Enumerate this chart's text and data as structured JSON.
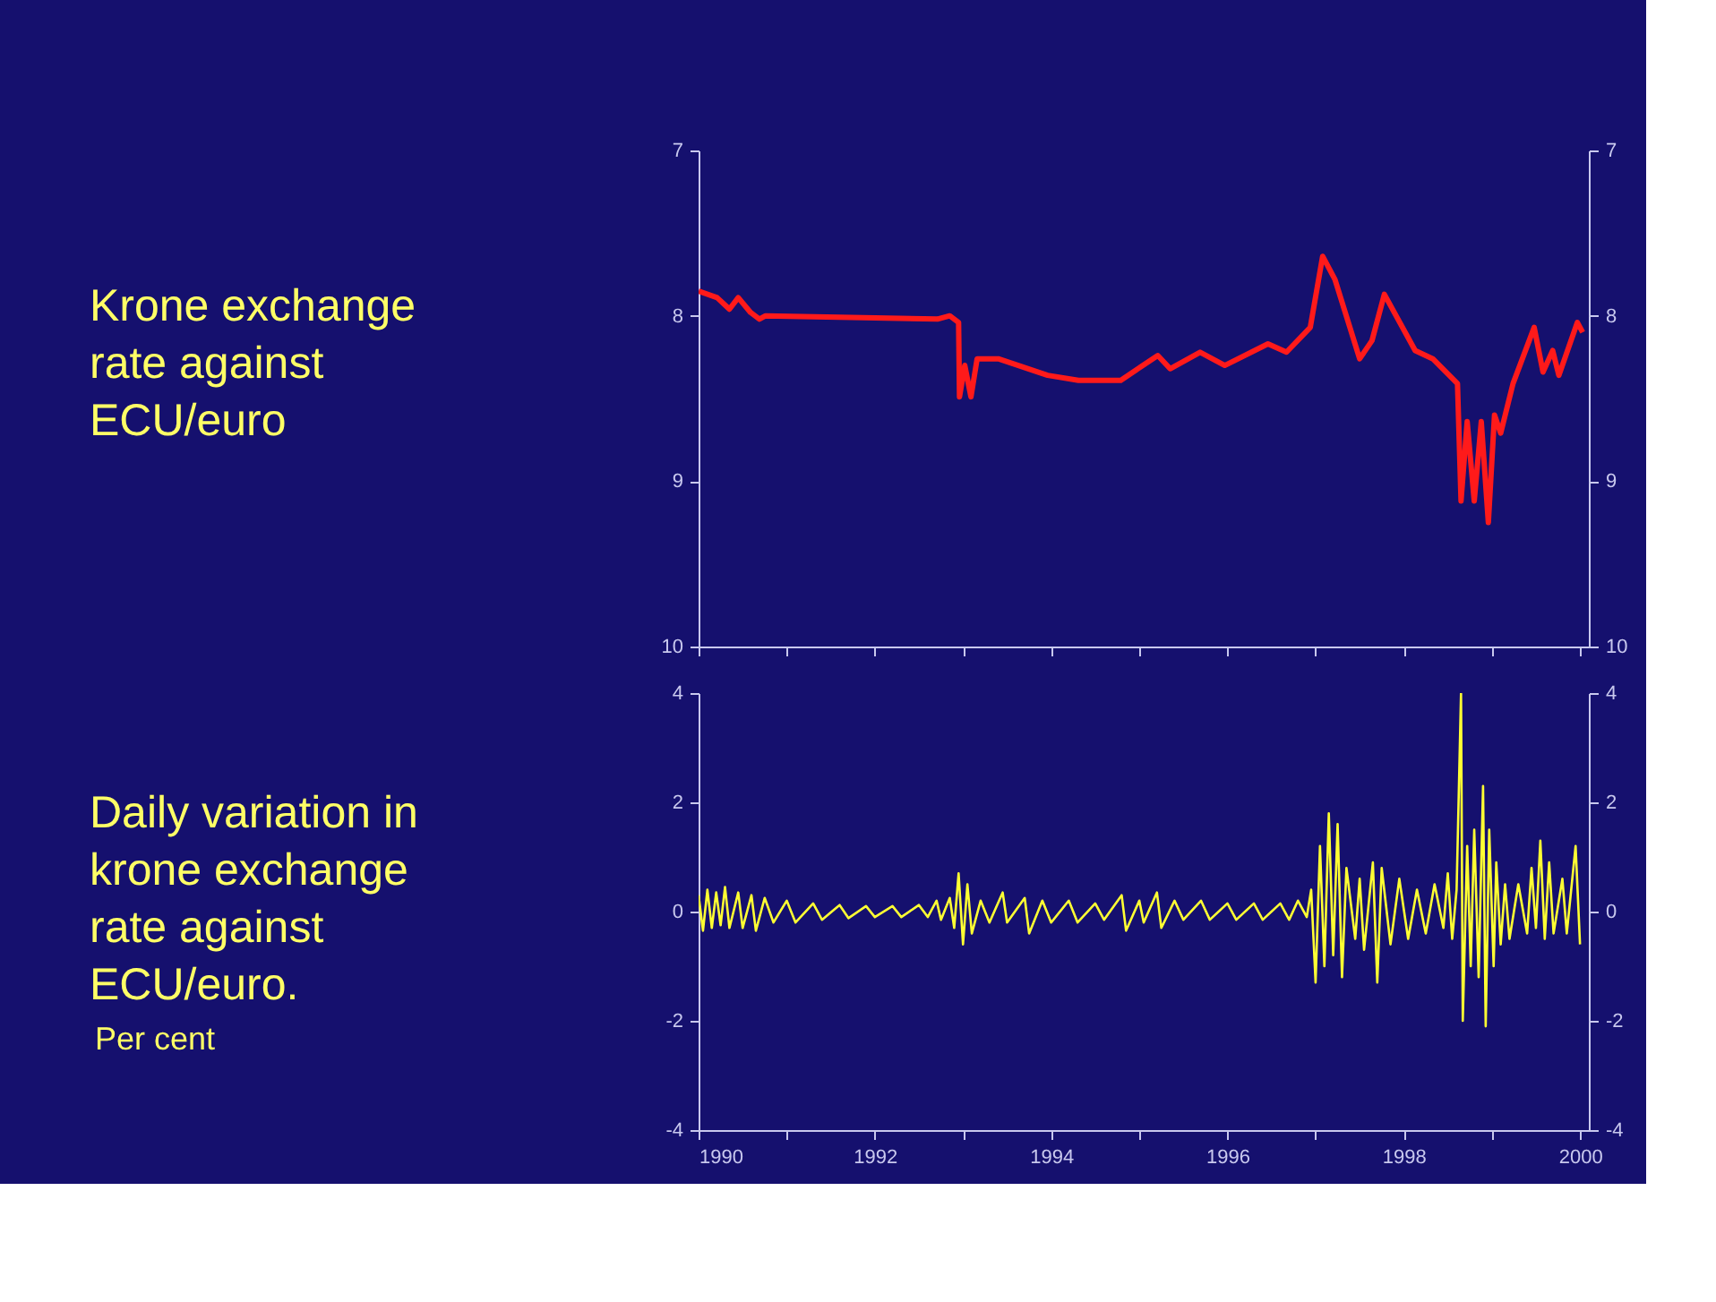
{
  "chart_data": [
    {
      "type": "line",
      "title": "Krone exchange rate against ECU/euro",
      "tick_labels": "y",
      "xlim": [
        1990,
        2000.1
      ],
      "xticks": [
        1990,
        {
          "value": 1991,
          "label": null
        },
        1992,
        {
          "value": 1993,
          "label": null
        },
        1994,
        {
          "value": 1995,
          "label": null
        },
        1996,
        {
          "value": 1997,
          "label": null
        },
        1998,
        {
          "value": 1999,
          "label": null
        },
        2000
      ],
      "ylim": [
        10,
        7
      ],
      "yticks": [
        7,
        8,
        9,
        10
      ],
      "y2lim": [
        10,
        7
      ],
      "y2ticks": [
        7,
        8,
        9,
        10
      ],
      "x": [
        1990.0,
        1990.21,
        1990.35,
        1990.45,
        1990.59,
        1990.69,
        1990.76,
        1992.71,
        1992.85,
        1992.95,
        1992.96,
        1993.02,
        1993.09,
        1993.16,
        1993.4,
        1993.96,
        1994.31,
        1994.79,
        1995.21,
        1995.35,
        1995.69,
        1995.97,
        1996.46,
        1996.67,
        1996.94,
        1997.08,
        1997.22,
        1997.5,
        1997.64,
        1997.78,
        1998.13,
        1998.33,
        1998.61,
        1998.65,
        1998.72,
        1998.8,
        1998.88,
        1998.96,
        1999.03,
        1999.1,
        1999.24,
        1999.48,
        1999.58,
        1999.69,
        1999.76,
        1999.97,
        2000.03
      ],
      "series": [
        {
          "color": "#ff1a1a",
          "values": [
            7.85,
            7.89,
            7.96,
            7.89,
            7.98,
            8.02,
            8.0,
            8.02,
            8.0,
            8.04,
            8.49,
            8.3,
            8.49,
            8.26,
            8.26,
            8.36,
            8.39,
            8.39,
            8.24,
            8.32,
            8.22,
            8.3,
            8.17,
            8.22,
            8.07,
            7.64,
            7.78,
            8.26,
            8.15,
            7.87,
            8.21,
            8.26,
            8.41,
            9.12,
            8.64,
            9.12,
            8.64,
            9.25,
            8.6,
            8.71,
            8.41,
            8.07,
            8.34,
            8.21,
            8.36,
            8.04,
            8.1
          ]
        }
      ]
    },
    {
      "type": "line",
      "title": "Daily variation in krone exchange rate against ECU/euro.",
      "ylabel": "Per cent",
      "xlim": [
        1990,
        2000.1
      ],
      "xticks": [
        1990,
        {
          "value": 1991,
          "label": null
        },
        1992,
        {
          "value": 1993,
          "label": null
        },
        1994,
        {
          "value": 1995,
          "label": null
        },
        1996,
        {
          "value": 1997,
          "label": null
        },
        1998,
        {
          "value": 1999,
          "label": null
        },
        2000
      ],
      "ylim": [
        -4,
        4
      ],
      "yticks": [
        -4,
        -2,
        0,
        2,
        4
      ],
      "y2lim": [
        -4,
        4
      ],
      "y2ticks": [
        -4,
        -2,
        0,
        2,
        4
      ],
      "x": [
        1990.0,
        1990.05,
        1990.1,
        1990.15,
        1990.2,
        1990.25,
        1990.3,
        1990.35,
        1990.45,
        1990.5,
        1990.6,
        1990.65,
        1990.75,
        1990.85,
        1991.0,
        1991.1,
        1991.3,
        1991.4,
        1991.6,
        1991.7,
        1991.9,
        1992.0,
        1992.2,
        1992.3,
        1992.5,
        1992.6,
        1992.7,
        1992.75,
        1992.85,
        1992.9,
        1992.95,
        1993.0,
        1993.05,
        1993.1,
        1993.2,
        1993.3,
        1993.45,
        1993.5,
        1993.7,
        1993.75,
        1993.9,
        1994.0,
        1994.2,
        1994.3,
        1994.5,
        1994.6,
        1994.8,
        1994.85,
        1995.0,
        1995.05,
        1995.2,
        1995.25,
        1995.4,
        1995.5,
        1995.7,
        1995.8,
        1996.0,
        1996.1,
        1996.3,
        1996.4,
        1996.6,
        1996.7,
        1996.8,
        1996.9,
        1996.95,
        1997.0,
        1997.05,
        1997.1,
        1997.15,
        1997.2,
        1997.25,
        1997.3,
        1997.35,
        1997.45,
        1997.5,
        1997.55,
        1997.65,
        1997.7,
        1997.75,
        1997.85,
        1997.95,
        1998.05,
        1998.15,
        1998.25,
        1998.35,
        1998.45,
        1998.5,
        1998.55,
        1998.6,
        1998.65,
        1998.67,
        1998.72,
        1998.76,
        1998.8,
        1998.85,
        1998.9,
        1998.93,
        1998.97,
        1999.02,
        1999.05,
        1999.1,
        1999.15,
        1999.2,
        1999.3,
        1999.4,
        1999.45,
        1999.5,
        1999.55,
        1999.6,
        1999.65,
        1999.7,
        1999.8,
        1999.85,
        1999.95,
        2000.0
      ],
      "series": [
        {
          "color": "#ffff33",
          "values": [
            0.3,
            -0.35,
            0.4,
            -0.3,
            0.35,
            -0.25,
            0.45,
            -0.3,
            0.35,
            -0.3,
            0.3,
            -0.35,
            0.25,
            -0.2,
            0.2,
            -0.2,
            0.15,
            -0.15,
            0.12,
            -0.12,
            0.1,
            -0.1,
            0.1,
            -0.1,
            0.12,
            -0.1,
            0.2,
            -0.15,
            0.25,
            -0.3,
            0.7,
            -0.6,
            0.5,
            -0.4,
            0.2,
            -0.2,
            0.35,
            -0.2,
            0.25,
            -0.4,
            0.2,
            -0.2,
            0.2,
            -0.2,
            0.15,
            -0.15,
            0.3,
            -0.35,
            0.2,
            -0.2,
            0.35,
            -0.3,
            0.2,
            -0.15,
            0.2,
            -0.15,
            0.15,
            -0.15,
            0.15,
            -0.15,
            0.15,
            -0.15,
            0.2,
            -0.1,
            0.4,
            -1.3,
            1.2,
            -1.0,
            1.8,
            -0.8,
            1.6,
            -1.2,
            0.8,
            -0.5,
            0.6,
            -0.7,
            0.9,
            -1.3,
            0.8,
            -0.6,
            0.6,
            -0.5,
            0.4,
            -0.4,
            0.5,
            -0.3,
            0.7,
            -0.5,
            0.4,
            4.0,
            -2.0,
            1.2,
            -1.0,
            1.5,
            -1.2,
            2.3,
            -2.1,
            1.5,
            -1.0,
            0.9,
            -0.6,
            0.5,
            -0.5,
            0.5,
            -0.4,
            0.8,
            -0.3,
            1.3,
            -0.5,
            0.9,
            -0.4,
            0.6,
            -0.4,
            1.2,
            -0.6
          ]
        }
      ]
    }
  ]
}
